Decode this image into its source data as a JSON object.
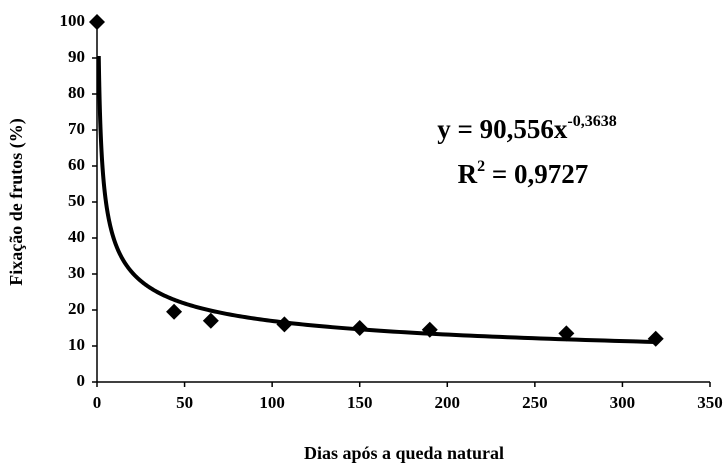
{
  "chart_data": {
    "type": "scatter",
    "x_label": "Dias após a queda natural",
    "y_label": "Fixação de frutos (%)",
    "x": [
      0,
      44,
      65,
      107,
      150,
      190,
      268,
      319
    ],
    "values": [
      100,
      19.5,
      17,
      16,
      15,
      14.5,
      13.5,
      12
    ],
    "color": "#000000",
    "xlim": [
      0,
      350
    ],
    "xticks": [
      0,
      50,
      100,
      150,
      200,
      250,
      300,
      350
    ],
    "ylim": [
      0,
      100
    ],
    "yticks": [
      0,
      10,
      20,
      30,
      40,
      50,
      60,
      70,
      80,
      90,
      100
    ],
    "grid": false,
    "trendline": {
      "type": "power",
      "coefficient": 90.556,
      "exponent": -0.3638,
      "equation": "y = 90,556x",
      "equation_exponent": "-0,3638",
      "r2_symbol": "R",
      "r2_power": "2",
      "r2_text": " = 0,9727"
    }
  }
}
